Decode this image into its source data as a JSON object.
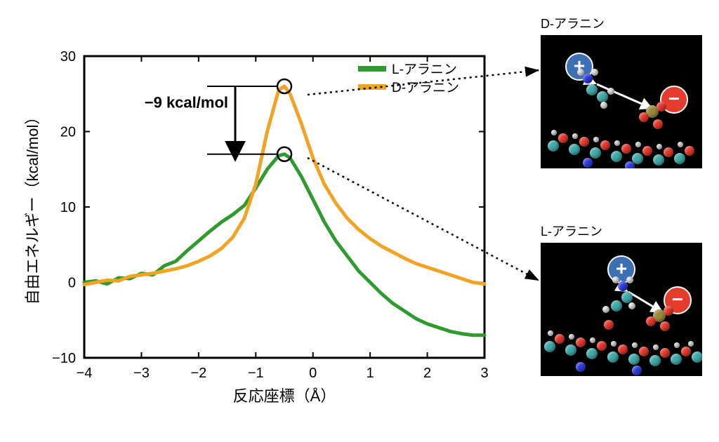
{
  "chart": {
    "type": "line",
    "xlabel": "反応座標（Å）",
    "ylabel": "自由エネルギー（kcal/mol）",
    "label_fontsize": 22,
    "tick_fontsize": 20,
    "xlim": [
      -4,
      3
    ],
    "ylim": [
      -10,
      30
    ],
    "xtick_step": 1,
    "ytick_step": 10,
    "background_color": "#ffffff",
    "axis_color": "#000000",
    "axis_width": 3,
    "line_width": 5,
    "series": [
      {
        "name": "L-アラニン",
        "color": "#2f9a2f",
        "data": [
          [
            -4,
            0
          ],
          [
            -3.8,
            0.2
          ],
          [
            -3.6,
            -0.2
          ],
          [
            -3.4,
            0.6
          ],
          [
            -3.2,
            0.5
          ],
          [
            -3,
            1.2
          ],
          [
            -2.8,
            1.0
          ],
          [
            -2.6,
            2.2
          ],
          [
            -2.4,
            2.8
          ],
          [
            -2.2,
            4.2
          ],
          [
            -2,
            5.5
          ],
          [
            -1.8,
            6.8
          ],
          [
            -1.6,
            8.0
          ],
          [
            -1.4,
            9.0
          ],
          [
            -1.2,
            10.2
          ],
          [
            -1,
            12.5
          ],
          [
            -0.8,
            15.0
          ],
          [
            -0.6,
            16.8
          ],
          [
            -0.5,
            17.0
          ],
          [
            -0.4,
            16.5
          ],
          [
            -0.2,
            14.0
          ],
          [
            0,
            11.0
          ],
          [
            0.2,
            8.0
          ],
          [
            0.4,
            5.5
          ],
          [
            0.6,
            3.5
          ],
          [
            0.8,
            1.5
          ],
          [
            1,
            0.0
          ],
          [
            1.2,
            -1.5
          ],
          [
            1.4,
            -2.8
          ],
          [
            1.6,
            -3.8
          ],
          [
            1.8,
            -4.8
          ],
          [
            2,
            -5.5
          ],
          [
            2.2,
            -6.0
          ],
          [
            2.4,
            -6.5
          ],
          [
            2.6,
            -6.8
          ],
          [
            2.8,
            -7.0
          ],
          [
            3,
            -7.0
          ]
        ]
      },
      {
        "name": "D-アラニン",
        "color": "#f0a426",
        "data": [
          [
            -4,
            -0.3
          ],
          [
            -3.8,
            0.0
          ],
          [
            -3.6,
            0.3
          ],
          [
            -3.4,
            0.2
          ],
          [
            -3.2,
            0.8
          ],
          [
            -3,
            1.0
          ],
          [
            -2.8,
            1.2
          ],
          [
            -2.6,
            1.5
          ],
          [
            -2.4,
            1.8
          ],
          [
            -2.2,
            2.2
          ],
          [
            -2,
            2.8
          ],
          [
            -1.8,
            3.5
          ],
          [
            -1.6,
            4.5
          ],
          [
            -1.4,
            6.0
          ],
          [
            -1.2,
            8.5
          ],
          [
            -1,
            13.0
          ],
          [
            -0.8,
            20.0
          ],
          [
            -0.6,
            25.5
          ],
          [
            -0.5,
            26.0
          ],
          [
            -0.4,
            25.0
          ],
          [
            -0.2,
            21.0
          ],
          [
            0,
            16.5
          ],
          [
            0.2,
            13.0
          ],
          [
            0.4,
            10.5
          ],
          [
            0.6,
            8.5
          ],
          [
            0.8,
            7.0
          ],
          [
            1,
            5.8
          ],
          [
            1.2,
            4.8
          ],
          [
            1.4,
            4.0
          ],
          [
            1.6,
            3.2
          ],
          [
            1.8,
            2.5
          ],
          [
            2,
            2.0
          ],
          [
            2.2,
            1.5
          ],
          [
            2.4,
            1.0
          ],
          [
            2.6,
            0.5
          ],
          [
            2.8,
            0.0
          ],
          [
            3,
            -0.2
          ]
        ]
      }
    ],
    "peak_markers": [
      {
        "x": -0.5,
        "y": 26.0,
        "series": "D"
      },
      {
        "x": -0.5,
        "y": 17.0,
        "series": "L"
      }
    ],
    "delta_label": "−9 kcal/mol",
    "delta_fontsize": 22,
    "legend": {
      "position": "upper-right-inside",
      "items": [
        {
          "label": "L-アラニン",
          "color": "#2f9a2f"
        },
        {
          "label": "D-アラニン",
          "color": "#f0a426"
        }
      ]
    }
  },
  "panels": {
    "top": {
      "label": "D-アラニン"
    },
    "bottom": {
      "label": "L-アラニン"
    }
  },
  "molecule_colors": {
    "O": "#e8372a",
    "N": "#2d3be0",
    "C": "#3faaa8",
    "H": "#e8e8e8",
    "P": "#9a8a3a"
  }
}
